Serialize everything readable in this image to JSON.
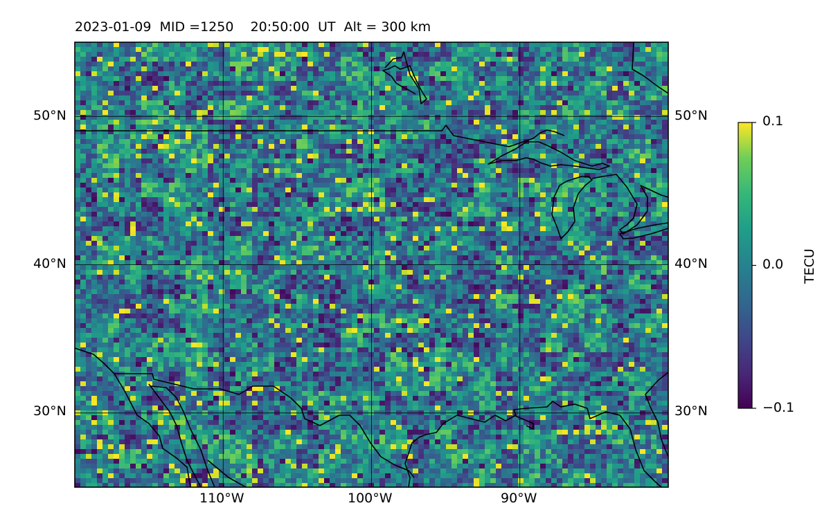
{
  "title": "2023-01-09  MID =1250    20:50:00  UT  Alt = 300 km",
  "map": {
    "lon_range": [
      -120,
      -80
    ],
    "lat_range": [
      25,
      55
    ],
    "lat_ticks": [
      {
        "value": 30,
        "label": "30°N"
      },
      {
        "value": 40,
        "label": "40°N"
      },
      {
        "value": 50,
        "label": "50°N"
      }
    ],
    "lon_ticks": [
      {
        "value": -110,
        "label": "110°W"
      },
      {
        "value": -100,
        "label": "100°W"
      },
      {
        "value": -90,
        "label": "90°W"
      }
    ],
    "gridlines": true,
    "coastlines": true,
    "field": "detrended TEC perturbation, noisy speckle pattern"
  },
  "colorbar": {
    "label": "TECU",
    "colormap": "viridis",
    "range": [
      -0.1,
      0.1
    ],
    "ticks": [
      {
        "value": 0.1,
        "label": "0.1"
      },
      {
        "value": 0.0,
        "label": "0.0"
      },
      {
        "value": -0.1,
        "label": "−0.1"
      }
    ]
  }
}
